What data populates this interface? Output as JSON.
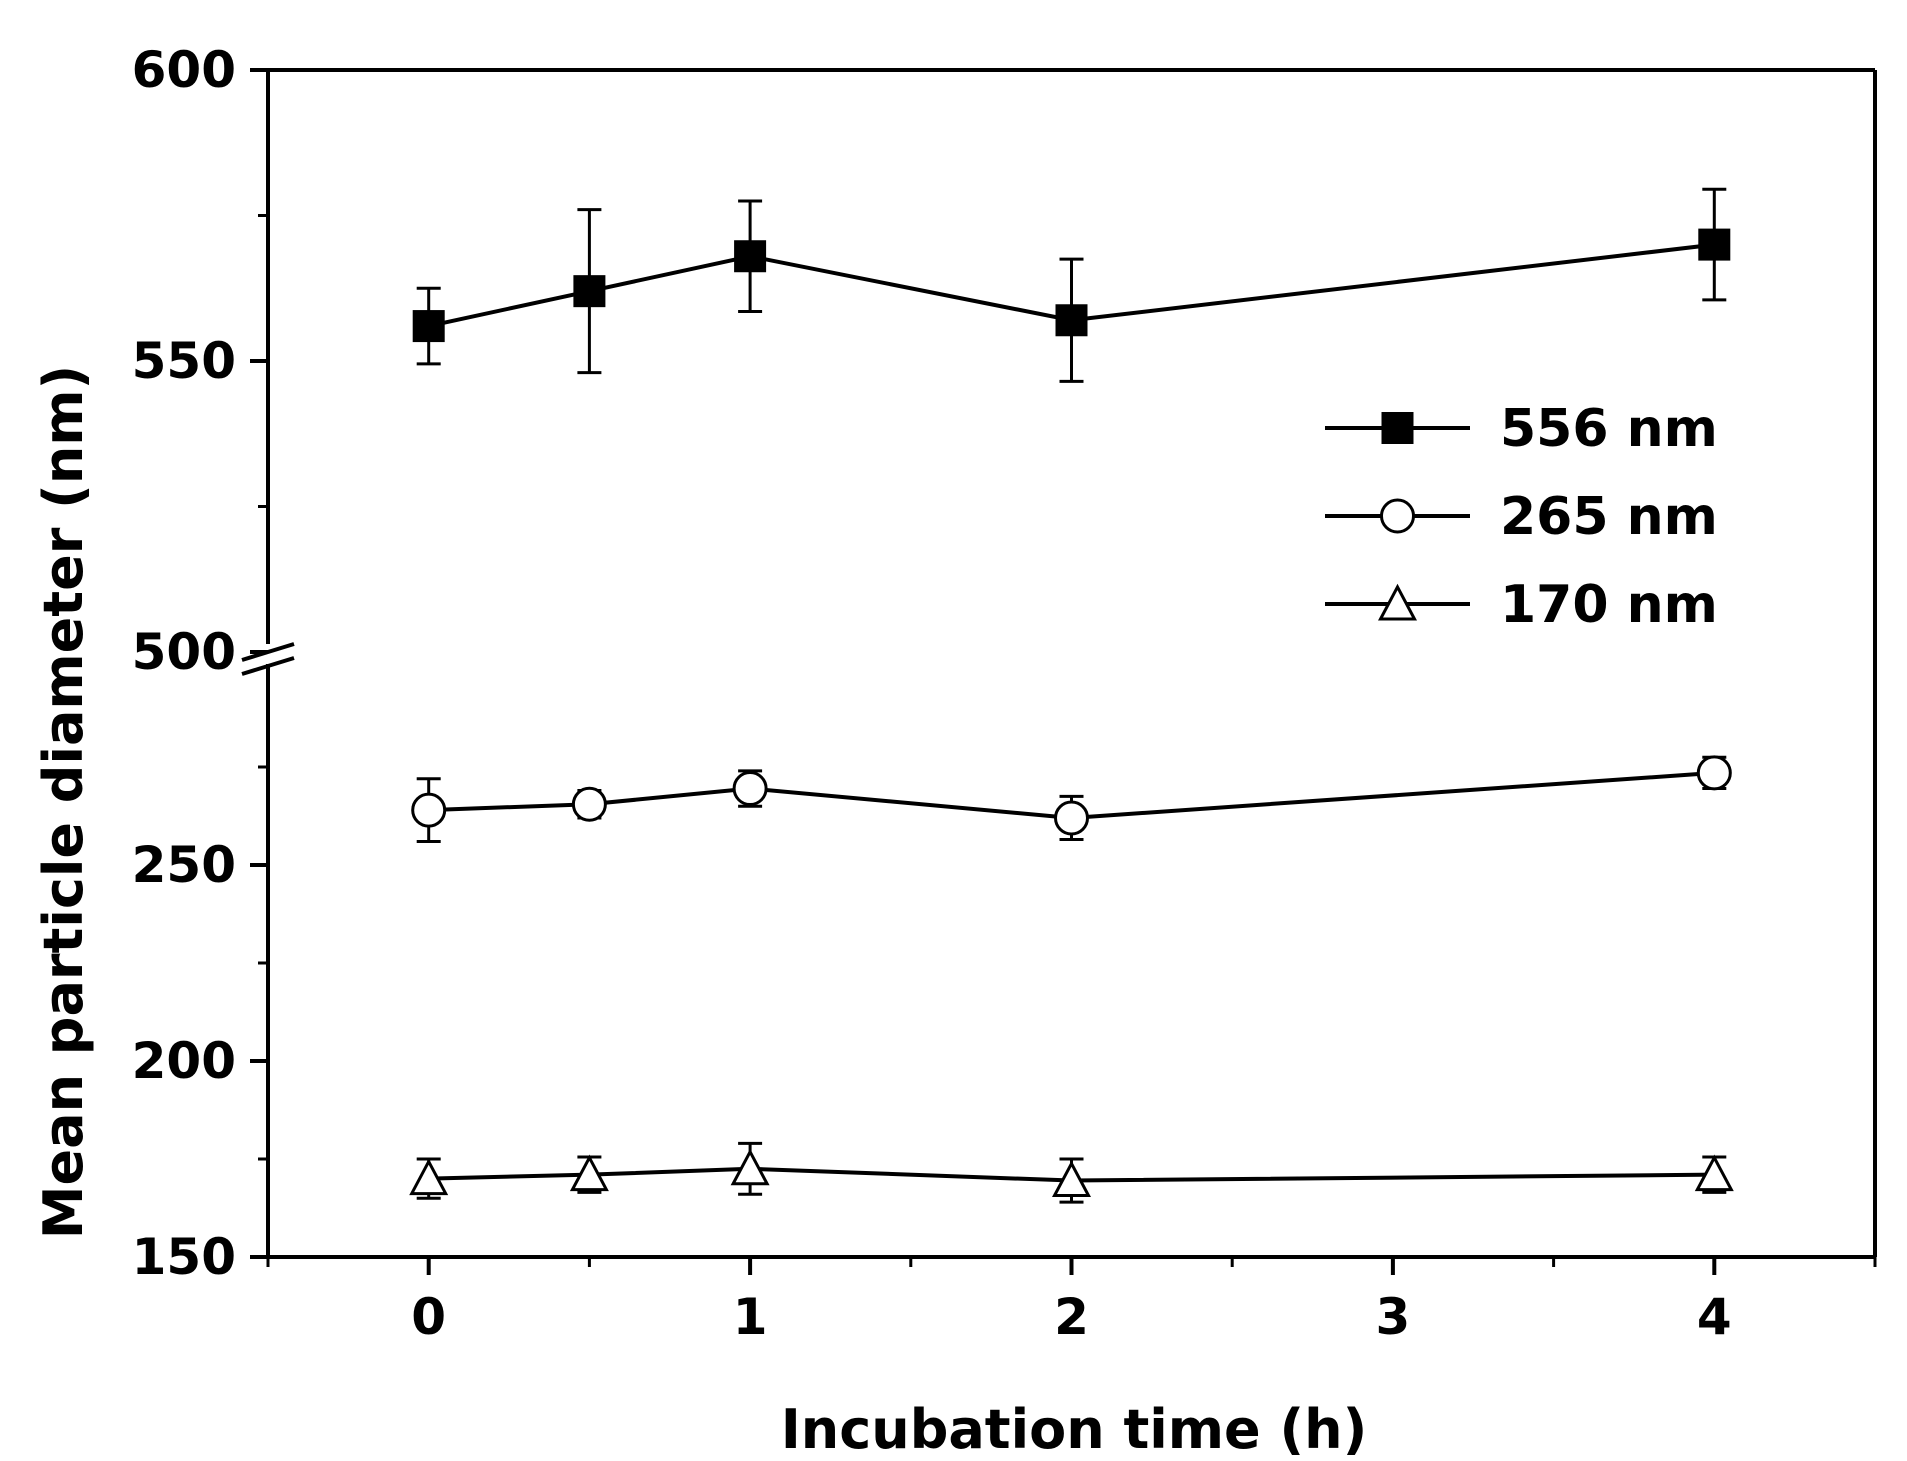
{
  "chart_data": {
    "type": "line",
    "xlabel": "Incubation time (h)",
    "ylabel": "Mean particle diameter (nm)",
    "xlim": [
      -0.5,
      4.5
    ],
    "x_ticks": [
      "0",
      "1",
      "2",
      "3",
      "4"
    ],
    "y_axis_break": true,
    "y_segments": [
      {
        "range": [
          150,
          300
        ],
        "ticks": [
          "150",
          "200",
          "250"
        ]
      },
      {
        "range": [
          500,
          600
        ],
        "ticks": [
          "500",
          "550",
          "600"
        ]
      }
    ],
    "legend_position": "upper-right",
    "series": [
      {
        "name": "556 nm",
        "marker": "filled-square",
        "x": [
          0,
          0.5,
          1,
          2,
          4
        ],
        "y": [
          556,
          562,
          568,
          557,
          570
        ],
        "error": [
          6.5,
          14,
          9.5,
          10.5,
          9.5
        ]
      },
      {
        "name": "265 nm",
        "marker": "open-circle",
        "x": [
          0,
          0.5,
          1,
          2,
          4
        ],
        "y": [
          264,
          265.5,
          269.5,
          262,
          273.5
        ],
        "error": [
          8,
          3.5,
          4.5,
          5.5,
          4
        ]
      },
      {
        "name": "170 nm",
        "marker": "open-triangle",
        "x": [
          0,
          0.5,
          1,
          2,
          4
        ],
        "y": [
          170,
          171,
          172.5,
          169.5,
          171
        ],
        "error": [
          5,
          4.5,
          6.5,
          5.5,
          4.5
        ]
      }
    ],
    "colors": {
      "axis": "#000000",
      "line": "#000000",
      "fill_open": "#ffffff"
    }
  }
}
